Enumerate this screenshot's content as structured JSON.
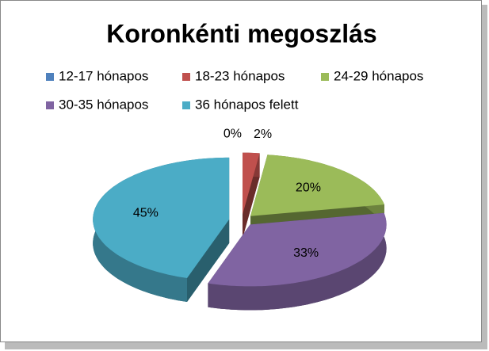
{
  "chart_data": {
    "type": "pie3d",
    "title": "Koronkénti megoszlás",
    "categories": [
      "12-17 hónapos",
      "18-23 hónapos",
      "24-29 hónapos",
      "30-35 hónapos",
      "36 hónapos felett"
    ],
    "values": [
      0,
      2,
      20,
      33,
      45
    ],
    "value_labels": [
      "0%",
      "2%",
      "20%",
      "33%",
      "45%"
    ],
    "colors": [
      "#4f81bd",
      "#c0504d",
      "#9bbb59",
      "#8064a2",
      "#4bacc6"
    ],
    "legend": "top"
  }
}
